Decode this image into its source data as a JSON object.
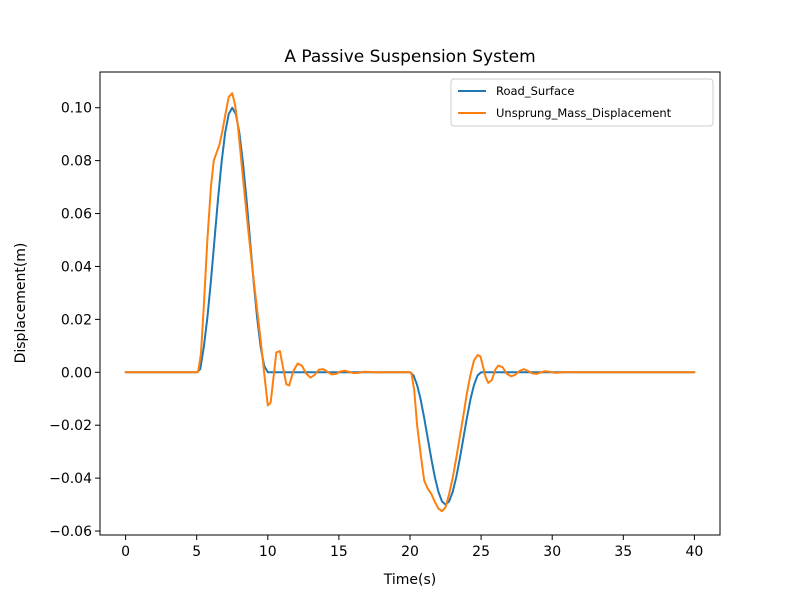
{
  "chart_data": {
    "type": "line",
    "title": "A Passive Suspension System",
    "xlabel": "Time(s)",
    "ylabel": "Displacement(m)",
    "xlim": [
      -1.8,
      41.8
    ],
    "ylim": [
      -0.0615,
      0.1135
    ],
    "xticks": [
      0,
      5,
      10,
      15,
      20,
      25,
      30,
      35,
      40
    ],
    "xtick_labels": [
      "0",
      "5",
      "10",
      "15",
      "20",
      "25",
      "30",
      "35",
      "40"
    ],
    "yticks": [
      -0.06,
      -0.04,
      -0.02,
      0.0,
      0.02,
      0.04,
      0.06,
      0.08,
      0.1
    ],
    "ytick_labels": [
      "−0.06",
      "−0.04",
      "−0.02",
      "0.00",
      "0.02",
      "0.04",
      "0.06",
      "0.08",
      "0.10"
    ],
    "grid": false,
    "legend_position": "top-right",
    "series": [
      {
        "name": "Road_Surface",
        "color": "#1f77b4",
        "x": [
          0,
          5,
          5.25,
          5.5,
          5.75,
          6,
          6.25,
          6.5,
          6.75,
          7,
          7.25,
          7.5,
          7.75,
          8,
          8.25,
          8.5,
          8.75,
          9,
          9.25,
          9.5,
          9.75,
          10,
          15,
          20,
          20.25,
          20.5,
          20.75,
          21,
          21.25,
          21.5,
          21.75,
          22,
          22.25,
          22.5,
          22.75,
          23,
          23.25,
          23.5,
          23.75,
          24,
          24.25,
          24.5,
          24.75,
          25,
          30,
          35,
          40
        ],
        "y": [
          0,
          0,
          0.0012,
          0.0095,
          0.0206,
          0.0345,
          0.05,
          0.0655,
          0.0794,
          0.0905,
          0.0976,
          0.1,
          0.0976,
          0.0905,
          0.0794,
          0.0655,
          0.05,
          0.0345,
          0.0206,
          0.0095,
          0.0024,
          0,
          0,
          0,
          -0.0012,
          -0.0048,
          -0.0103,
          -0.0173,
          -0.025,
          -0.0327,
          -0.0397,
          -0.0452,
          -0.0488,
          -0.05,
          -0.0488,
          -0.0452,
          -0.0397,
          -0.0327,
          -0.025,
          -0.0173,
          -0.0103,
          -0.0048,
          -0.0012,
          0,
          0,
          0,
          0
        ]
      },
      {
        "name": "Unsprung_Mass_Displacement",
        "color": "#ff7f0e",
        "x": [
          0,
          5,
          5.1,
          5.3,
          5.5,
          5.75,
          6,
          6.2,
          6.4,
          6.6,
          6.8,
          7,
          7.25,
          7.5,
          7.7,
          7.9,
          8.1,
          8.3,
          8.6,
          8.9,
          9.2,
          9.5,
          9.8,
          10,
          10.2,
          10.4,
          10.6,
          10.85,
          11.1,
          11.3,
          11.5,
          11.8,
          12.1,
          12.4,
          12.7,
          13,
          13.3,
          13.6,
          13.9,
          14.2,
          14.5,
          14.8,
          15.1,
          15.4,
          15.7,
          16,
          16.4,
          16.8,
          17.2,
          17.6,
          18,
          18.5,
          19,
          19.5,
          20,
          20.1,
          20.3,
          20.5,
          20.75,
          21,
          21.25,
          21.5,
          21.75,
          22,
          22.25,
          22.5,
          22.75,
          23,
          23.25,
          23.5,
          23.75,
          24,
          24.25,
          24.5,
          24.75,
          24.95,
          25.1,
          25.3,
          25.5,
          25.75,
          26,
          26.2,
          26.5,
          26.8,
          27.1,
          27.4,
          27.7,
          28,
          28.3,
          28.6,
          28.9,
          29.2,
          29.5,
          29.8,
          30.2,
          30.6,
          31,
          31.5,
          32,
          32.5,
          33,
          34,
          35,
          36,
          40
        ],
        "y": [
          0,
          0,
          0.0002,
          0.007,
          0.025,
          0.05,
          0.07,
          0.08,
          0.083,
          0.086,
          0.091,
          0.097,
          0.104,
          0.1055,
          0.101,
          0.093,
          0.082,
          0.071,
          0.055,
          0.04,
          0.026,
          0.012,
          -0.003,
          -0.0125,
          -0.0115,
          -0.002,
          0.0075,
          0.008,
          0.001,
          -0.0045,
          -0.005,
          0.0005,
          0.0033,
          0.0025,
          -0.0005,
          -0.002,
          -0.001,
          0.001,
          0.0012,
          0.0002,
          -0.0008,
          -0.0006,
          0.0003,
          0.0006,
          0.0002,
          -0.0003,
          -0.0002,
          0.0002,
          0.0001,
          -0.0001,
          0,
          0,
          0,
          0,
          0,
          -0.0002,
          -0.007,
          -0.02,
          -0.031,
          -0.041,
          -0.044,
          -0.046,
          -0.049,
          -0.0515,
          -0.0525,
          -0.051,
          -0.046,
          -0.04,
          -0.0325,
          -0.0245,
          -0.0165,
          -0.008,
          -0.001,
          0.0045,
          0.0065,
          0.006,
          0.003,
          -0.0015,
          -0.004,
          -0.003,
          0.001,
          0.0025,
          0.002,
          -0.0005,
          -0.0015,
          -0.001,
          0.0005,
          0.0012,
          0.0005,
          -0.0004,
          -0.0006,
          0,
          0.0004,
          0.0002,
          -0.0002,
          -0.0001,
          0.0001,
          0,
          0,
          0,
          0,
          0,
          0,
          0,
          0
        ]
      }
    ]
  }
}
